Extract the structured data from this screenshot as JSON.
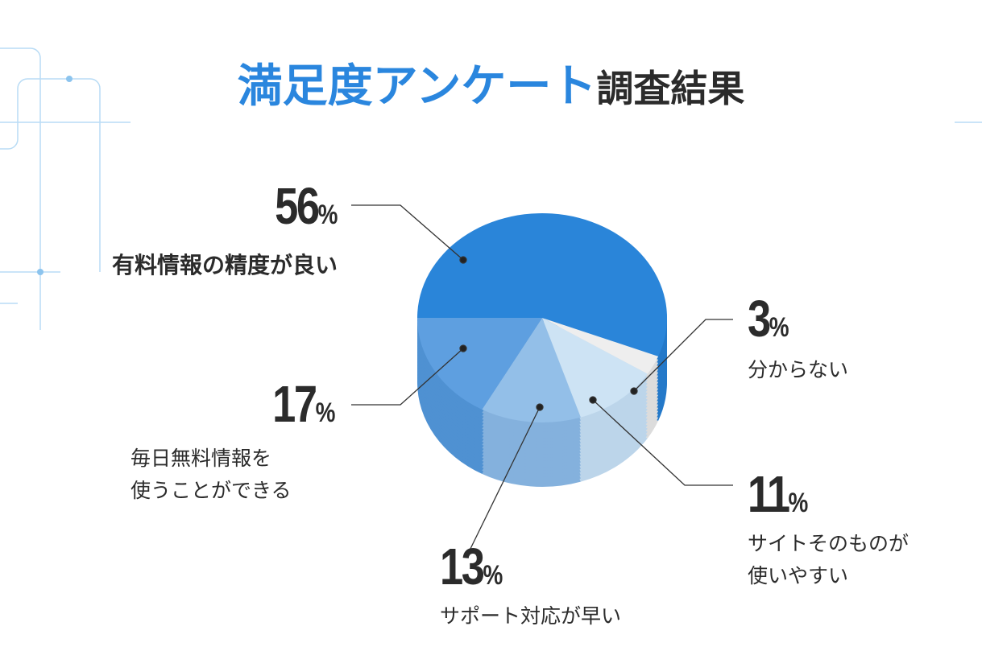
{
  "title": {
    "highlight": "満足度アンケート",
    "rest": "調査結果"
  },
  "colors": {
    "accent": "#2a86de",
    "text": "#2b2b2b",
    "deco": "#a9d3f2"
  },
  "chart_data": {
    "type": "pie",
    "style": "3d",
    "title": "満足度アンケート調査結果",
    "slices": [
      {
        "label": "有料情報の精度が良い",
        "value": 56,
        "display": "56",
        "top": "#2a85d9",
        "side": "#2479c9"
      },
      {
        "label": "分からない",
        "value": 3,
        "display": "3",
        "top": "#eeeeee",
        "side": "#dcdcdc"
      },
      {
        "label": "サイトそのものが\n使いやすい",
        "value": 11,
        "display": "11",
        "top": "#cde3f4",
        "side": "#bcd5ea"
      },
      {
        "label": "サポート対応が早い",
        "value": 13,
        "display": "13",
        "top": "#93bfe8",
        "side": "#84b1dd"
      },
      {
        "label": "毎日無料情報を\n使うことができる",
        "value": 17,
        "display": "17",
        "top": "#5e9fe0",
        "side": "#4f91d2"
      }
    ],
    "unit": "%"
  }
}
